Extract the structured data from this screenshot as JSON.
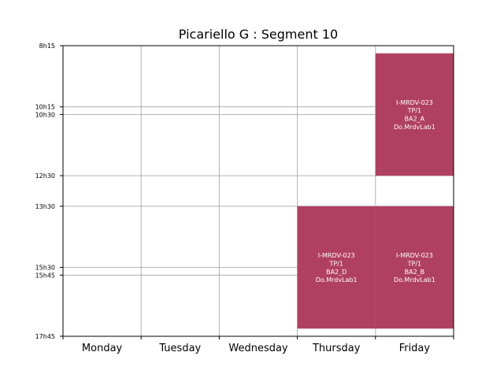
{
  "chart_data": {
    "type": "timetable",
    "title": "Picariello G : Segment 10",
    "days": [
      "Monday",
      "Tuesday",
      "Wednesday",
      "Thursday",
      "Friday"
    ],
    "y_ticks": [
      "8h15",
      "10h15",
      "10h30",
      "12h30",
      "13h30",
      "15h30",
      "15h45",
      "17h45"
    ],
    "y_range": [
      "8h15",
      "17h45"
    ],
    "grid": true,
    "events": [
      {
        "day": "Friday",
        "start": "8h30",
        "end": "12h30",
        "lines": [
          "I-MRDV-023",
          "TP/1",
          "BA2_A",
          "Do.MrdvLab1"
        ]
      },
      {
        "day": "Thursday",
        "start": "13h30",
        "end": "17h30",
        "lines": [
          "I-MRDV-023",
          "TP/1",
          "BA2_D",
          "Do.MrdvLab1"
        ]
      },
      {
        "day": "Friday",
        "start": "13h30",
        "end": "17h30",
        "lines": [
          "I-MRDV-023",
          "TP/1",
          "BA2_B",
          "Do.MrdvLab1"
        ]
      }
    ],
    "colors": {
      "event_fill": "#b04061",
      "event_text": "#ffffff",
      "grid": "#b0b0b0",
      "axis": "#000000"
    }
  }
}
